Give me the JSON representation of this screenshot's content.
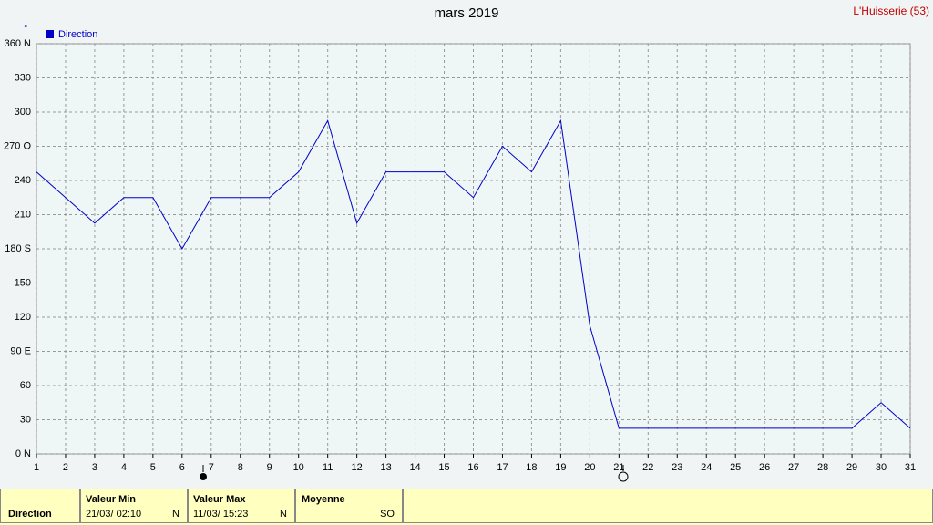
{
  "chart_data": {
    "type": "line",
    "title": "mars 2019",
    "location": "L'Huisserie (53)",
    "y_unit": "°",
    "x": [
      1,
      2,
      3,
      4,
      5,
      6,
      7,
      8,
      9,
      10,
      11,
      12,
      13,
      14,
      15,
      16,
      17,
      18,
      19,
      20,
      21,
      22,
      23,
      24,
      25,
      26,
      27,
      28,
      29,
      30,
      31
    ],
    "xlim": [
      1,
      31
    ],
    "xticks": [
      1,
      2,
      3,
      4,
      5,
      6,
      7,
      8,
      9,
      10,
      11,
      12,
      13,
      14,
      15,
      16,
      17,
      18,
      19,
      20,
      21,
      22,
      23,
      24,
      25,
      26,
      27,
      28,
      29,
      30,
      31
    ],
    "ylim": [
      0,
      360
    ],
    "yticks": [
      {
        "value": 0,
        "label": "0   N"
      },
      30,
      60,
      {
        "value": 90,
        "label": "90  E"
      },
      120,
      150,
      {
        "value": 180,
        "label": "180 S"
      },
      210,
      240,
      {
        "value": 270,
        "label": "270 O"
      },
      300,
      330,
      {
        "value": 360,
        "label": "360 N"
      }
    ],
    "grid": true,
    "legend": "top-left",
    "series": [
      {
        "name": "Direction",
        "color": "#0000c8",
        "values": [
          247.5,
          225,
          202.5,
          225,
          225,
          180,
          225,
          225,
          225,
          247.5,
          292.5,
          202.5,
          247.5,
          247.5,
          247.5,
          225,
          270,
          247.5,
          292.5,
          112.5,
          22.5,
          22.5,
          22.5,
          22.5,
          22.5,
          22.5,
          22.5,
          22.5,
          22.5,
          45,
          22.5
        ]
      }
    ]
  },
  "summary": {
    "row_label": "Direction",
    "min": {
      "header": "Valeur Min",
      "date": "21/03/  02:10",
      "dir": "N"
    },
    "max": {
      "header": "Valeur Max",
      "date": "11/03/  15:23",
      "dir": "N"
    },
    "mean": {
      "header": "Moyenne",
      "dir": "SO"
    }
  }
}
